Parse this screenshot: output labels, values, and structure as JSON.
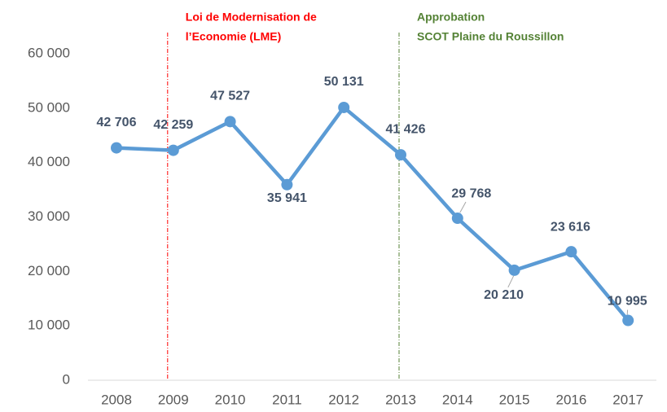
{
  "chart_data": {
    "type": "line",
    "categories": [
      "2008",
      "2009",
      "2010",
      "2011",
      "2012",
      "2013",
      "2014",
      "2015",
      "2016",
      "2017"
    ],
    "series": [
      {
        "color": "#5b9bd5",
        "values": [
          42706,
          42259,
          47527,
          35941,
          50131,
          41426,
          29768,
          20210,
          23616,
          10995
        ],
        "value_labels": [
          "42 706",
          "42 259",
          "47 527",
          "35 941",
          "50 131",
          "41 426",
          "29 768",
          "20 210",
          "23 616",
          "10 995"
        ]
      }
    ],
    "ylim": [
      0,
      60000
    ],
    "yticks": [
      {
        "value": 0,
        "label": "0"
      },
      {
        "value": 10000,
        "label": "10 000"
      },
      {
        "value": 20000,
        "label": "20 000"
      },
      {
        "value": 30000,
        "label": "30 000"
      },
      {
        "value": 40000,
        "label": "40 000"
      },
      {
        "value": 50000,
        "label": "50 000"
      },
      {
        "value": 60000,
        "label": "60 000"
      }
    ],
    "grid": false,
    "annotations": [
      {
        "x": "2009",
        "text": [
          "Loi de Modernisation de",
          "l’Economie (LME)"
        ],
        "color": "#ff0000"
      },
      {
        "x": "2013",
        "text": [
          "Approbation",
          "SCOT Plaine du Roussillon"
        ],
        "color": "#548235"
      }
    ]
  }
}
